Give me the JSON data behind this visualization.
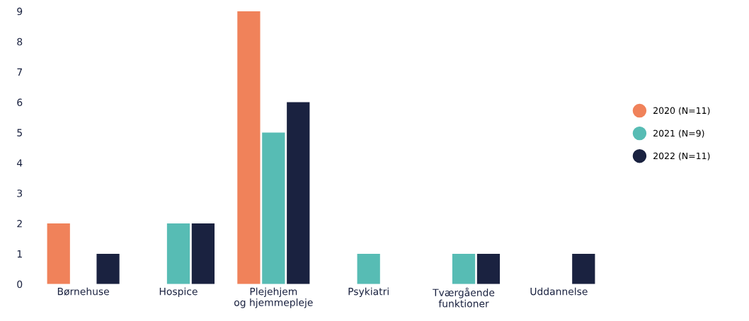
{
  "chart_data": {
    "type": "bar",
    "categories": [
      "Børnehuse",
      "Hospice",
      "Plejehjem\nog hjemmepleje",
      "Psykiatri",
      "Tværgående\nfunktioner",
      "Uddannelse"
    ],
    "series": [
      {
        "name": "2020 (N=11)",
        "color": "#f0825a",
        "values": [
          2,
          0,
          9,
          0,
          0,
          0
        ]
      },
      {
        "name": "2021 (N=9)",
        "color": "#57bcb4",
        "values": [
          0,
          2,
          5,
          1,
          1,
          0
        ]
      },
      {
        "name": "2022 (N=11)",
        "color": "#1a2240",
        "values": [
          1,
          2,
          6,
          0,
          1,
          1
        ]
      }
    ],
    "ylim": [
      0,
      9
    ],
    "yticks": [
      0,
      1,
      2,
      3,
      4,
      5,
      6,
      7,
      8,
      9
    ],
    "grid": false,
    "legend": "right"
  }
}
